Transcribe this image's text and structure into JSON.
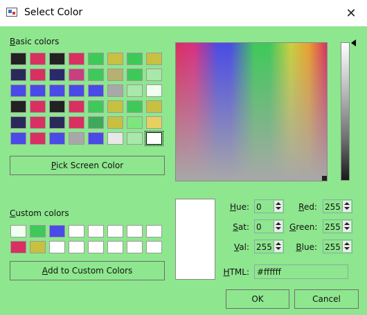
{
  "window": {
    "title": "Select Color"
  },
  "basic": {
    "label": "Basic colors",
    "label_key": "B",
    "label_rest": "asic colors",
    "swatches": [
      "#222222",
      "#d83060",
      "#222222",
      "#d83060",
      "#3ec95a",
      "#c8c040",
      "#3ec95a",
      "#c8c040",
      "#2a2a5a",
      "#d83060",
      "#2a2a6a",
      "#c84080",
      "#3ec95a",
      "#b8b070",
      "#3ec95a",
      "#a8e8a8",
      "#4a4ae6",
      "#4a4ae6",
      "#4a4ae6",
      "#4a4ae6",
      "#4a4ae6",
      "#a8a8a8",
      "#a8e8a8",
      "#f0fff0",
      "#222222",
      "#d83060",
      "#222222",
      "#d83060",
      "#3ec95a",
      "#c8c040",
      "#3ec95a",
      "#c8c040",
      "#2a2a5a",
      "#d83060",
      "#2a2a5a",
      "#d83060",
      "#3ea95a",
      "#c8c040",
      "#7ee67e",
      "#e8d060",
      "#4a4ae6",
      "#d83060",
      "#4a4ae6",
      "#a8a8a8",
      "#4a4ae6",
      "#e8e8e8",
      "#a8e8a8",
      "#ffffff"
    ],
    "selected_index": 47
  },
  "pick_screen": {
    "key": "P",
    "rest": "ick Screen Color"
  },
  "custom": {
    "label_key": "C",
    "label_rest": "ustom colors",
    "swatches": [
      "#f0fff0",
      "#3ec95a",
      "#4a4ae6",
      "#ffffff",
      "#ffffff",
      "#ffffff",
      "#ffffff",
      "#ffffff",
      "#d83060",
      "#c8c040",
      "#ffffff",
      "#ffffff",
      "#ffffff",
      "#ffffff",
      "#ffffff",
      "#ffffff"
    ]
  },
  "add_custom": {
    "key": "A",
    "rest": "dd to Custom Colors"
  },
  "fields": {
    "hue": {
      "key": "H",
      "rest": "ue:",
      "value": "0"
    },
    "sat": {
      "key": "S",
      "rest": "at:",
      "value": "0"
    },
    "val": {
      "key": "V",
      "rest": "al:",
      "value": "255"
    },
    "red": {
      "key": "R",
      "rest": "ed:",
      "value": "255"
    },
    "green": {
      "key": "G",
      "rest": "reen:",
      "value": "255"
    },
    "blue": {
      "key": "B",
      "rest": "lue:",
      "value": "255"
    }
  },
  "html_field": {
    "key": "H",
    "rest": "TML:",
    "value": "#ffffff"
  },
  "buttons": {
    "ok": "OK",
    "cancel": "Cancel"
  },
  "current_color": "#ffffff",
  "colors": {
    "background": "#8ee68e",
    "titlebar": "#ffffff"
  }
}
